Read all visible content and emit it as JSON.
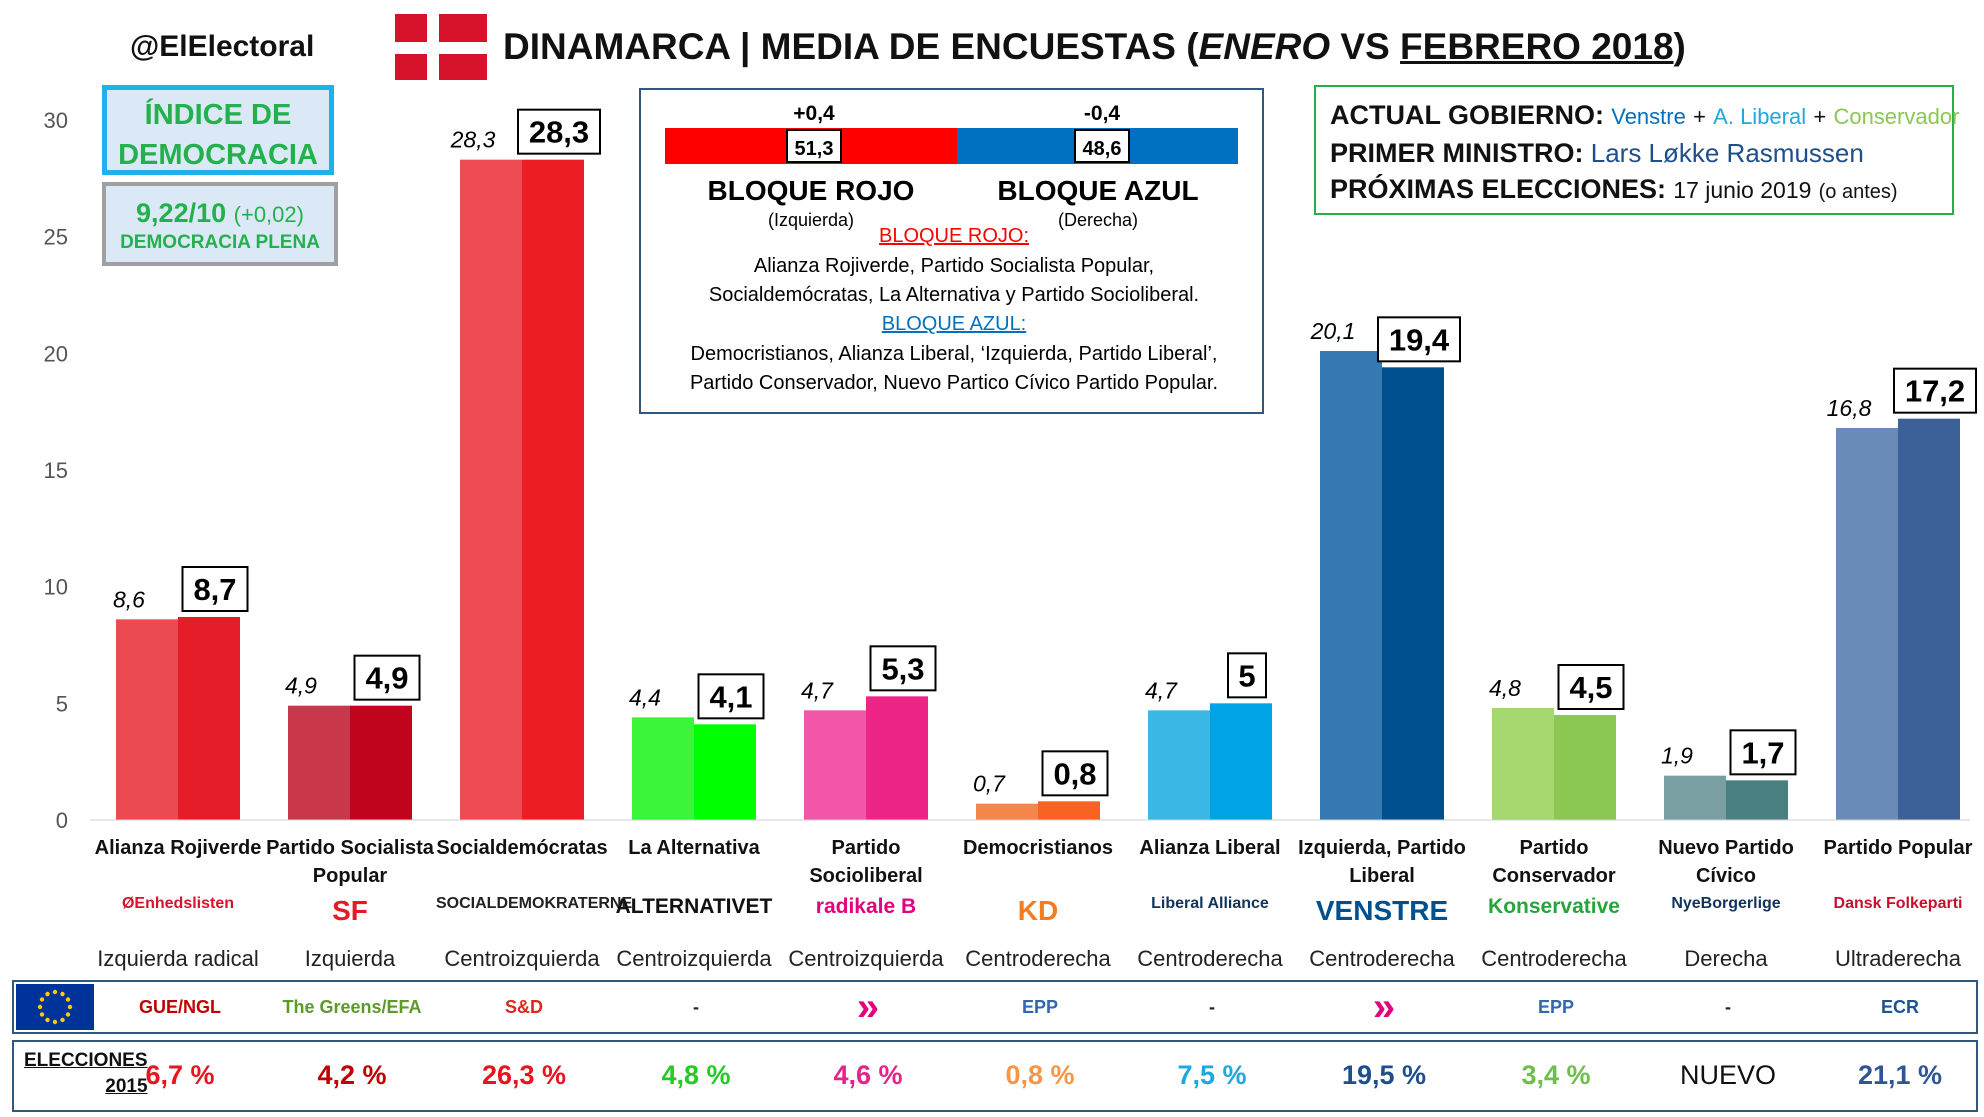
{
  "header": {
    "handle": "@ElElectoral",
    "title_main": "DINAMARCA | MEDIA DE ENCUESTAS (",
    "title_prev": "ENERO",
    "title_vs": " VS ",
    "title_curr": "FEBRERO 2018",
    "title_close": ")"
  },
  "democracy": {
    "title_line1": "ÍNDICE DE",
    "title_line2": "DEMOCRACIA",
    "score": "9,22/10",
    "change": "(+0,02)",
    "label": "DEMOCRACIA PLENA"
  },
  "blocs": {
    "red_change": "+0,4",
    "blue_change": "-0,4",
    "red_value": "51,3",
    "blue_value": "48,6",
    "red_name": "BLOQUE ROJO",
    "blue_name": "BLOQUE AZUL",
    "red_side": "(Izquierda)",
    "blue_side": "(Derecha)",
    "red_heading": "BLOQUE ROJO:",
    "red_members_1": "Alianza Rojiverde, Partido Socialista Popular,",
    "red_members_2": "Socialdemócratas, La Alternativa y Partido Socioliberal.",
    "blue_heading": "BLOQUE AZUL:",
    "blue_members_1": "Democristianos, Alianza Liberal, ‘Izquierda, Partido Liberal’,",
    "blue_members_2": "Partido Conservador, Nuevo Partico Cívico Partido Popular.",
    "red_color": "#ff0000",
    "blue_color": "#0070c0"
  },
  "government": {
    "label1": "ACTUAL GOBIERNO:",
    "party1": "Venstre",
    "plus": "+",
    "party2": "A. Liberal",
    "party3": "Conservador",
    "label2": "PRIMER MINISTRO:",
    "pm": "Lars Løkke Rasmussen",
    "label3": "PRÓXIMAS ELECCIONES:",
    "date": "17 junio 2019",
    "date_note": "(o antes)"
  },
  "chart_data": {
    "type": "bar",
    "ylim": [
      0,
      30
    ],
    "yticks": [
      "0",
      "5",
      "10",
      "15",
      "20",
      "25",
      "30"
    ],
    "grid": false,
    "categories": [
      "Alianza Rojiverde",
      "Partido Socialista Popular",
      "Socialdemócratas",
      "La Alternativa",
      "Partido Socioliberal",
      "Democristianos",
      "Alianza Liberal",
      "Izquierda, Partido Liberal",
      "Partido Conservador",
      "Nuevo Partido Cívico",
      "Partido Popular"
    ],
    "series": [
      {
        "name": "ENERO",
        "values": [
          8.6,
          4.9,
          28.3,
          4.4,
          4.7,
          0.7,
          4.7,
          20.1,
          4.8,
          1.9,
          16.8
        ],
        "labels": [
          "8,6",
          "4,9",
          "28,3",
          "4,4",
          "4,7",
          "0,7",
          "4,7",
          "20,1",
          "4,8",
          "1,9",
          "16,8"
        ]
      },
      {
        "name": "FEBRERO 2018",
        "values": [
          8.7,
          4.9,
          28.3,
          4.1,
          5.3,
          0.8,
          5.0,
          19.4,
          4.5,
          1.7,
          17.2
        ],
        "labels": [
          "8,7",
          "4,9",
          "28,3",
          "4,1",
          "5,3",
          "0,8",
          "5",
          "19,4",
          "4,5",
          "1,7",
          "17,2"
        ]
      }
    ],
    "colors_prev": [
      "#ea4a50",
      "#c9384a",
      "#ee4c52",
      "#3af53a",
      "#f156a8",
      "#f58548",
      "#3bb8e6",
      "#357ab3",
      "#a5d86f",
      "#7a9fa2",
      "#6a8ab8"
    ],
    "colors_curr": [
      "#e51d28",
      "#c1051f",
      "#ec1d25",
      "#00ff00",
      "#ed2586",
      "#f86222",
      "#00a3e4",
      "#00508f",
      "#8bc752",
      "#4a7f81",
      "#3c6098"
    ]
  },
  "parties": [
    {
      "name1": "Alianza Rojiverde",
      "name2": "",
      "logo": "ØEnhedslisten",
      "logo_color": "#d6132a",
      "ideology": "Izquierda radical",
      "eu": "GUE/NGL",
      "eu_color": "#c00000",
      "elec": "6,7 %",
      "elec_color": "#e8141e"
    },
    {
      "name1": "Partido Socialista",
      "name2": "Popular",
      "logo": "SF",
      "logo_color": "#e41b23",
      "ideology": "Izquierda",
      "eu": "The Greens/EFA",
      "eu_color": "#5c9a2a",
      "elec": "4,2 %",
      "elec_color": "#c00000"
    },
    {
      "name1": "Socialdemócratas",
      "name2": "",
      "logo": "SOCIALDEMOKRATERNE",
      "logo_color": "#222222",
      "ideology": "Centroizquierda",
      "eu": "S&D",
      "eu_color": "#e1251b",
      "elec": "26,3 %",
      "elec_color": "#e8141e"
    },
    {
      "name1": "La Alternativa",
      "name2": "",
      "logo": "ALTERNATIVET",
      "logo_color": "#111111",
      "ideology": "Centroizquierda",
      "eu": "-",
      "eu_color": "#222222",
      "elec": "4,8 %",
      "elec_color": "#22cc22"
    },
    {
      "name1": "Partido",
      "name2": "Socioliberal",
      "logo": "radikale B",
      "logo_color": "#e4007c",
      "ideology": "Centroizquierda",
      "eu": "»",
      "eu_color": "#e4007c",
      "elec": "4,6 %",
      "elec_color": "#e4238b"
    },
    {
      "name1": "Democristianos",
      "name2": "",
      "logo": "KD",
      "logo_color": "#f47c20",
      "ideology": "Centroderecha",
      "eu": "EPP",
      "eu_color": "#3466b0",
      "elec": "0,8 %",
      "elec_color": "#f79646"
    },
    {
      "name1": "Alianza Liberal",
      "name2": "",
      "logo": "Liberal Alliance",
      "logo_color": "#12335b",
      "ideology": "Centroderecha",
      "eu": "-",
      "eu_color": "#222222",
      "elec": "7,5 %",
      "elec_color": "#1fa7e0"
    },
    {
      "name1": "Izquierda, Partido",
      "name2": "Liberal",
      "logo": "VENSTRE",
      "logo_color": "#00508f",
      "ideology": "Centroderecha",
      "eu": "»",
      "eu_color": "#e4007c",
      "elec": "19,5 %",
      "elec_color": "#1f4e8c"
    },
    {
      "name1": "Partido",
      "name2": "Conservador",
      "logo": "Konservative",
      "logo_color": "#27a43a",
      "ideology": "Centroderecha",
      "eu": "EPP",
      "eu_color": "#3466b0",
      "elec": "3,4 %",
      "elec_color": "#6cc04a"
    },
    {
      "name1": "Nuevo Partido",
      "name2": "Cívico",
      "logo": "NyeBorgerlige",
      "logo_color": "#12335b",
      "ideology": "Derecha",
      "eu": "-",
      "eu_color": "#222222",
      "elec": "NUEVO",
      "elec_color": "#111111"
    },
    {
      "name1": "Partido Popular",
      "name2": "",
      "logo": "Dansk Folkeparti",
      "logo_color": "#c8102e",
      "ideology": "Ultraderecha",
      "eu": "ECR",
      "eu_color": "#1b5394",
      "elec": "21,1 %",
      "elec_color": "#2f5597"
    }
  ],
  "election": {
    "label1": "ELECCIONES",
    "label2": "2015"
  }
}
